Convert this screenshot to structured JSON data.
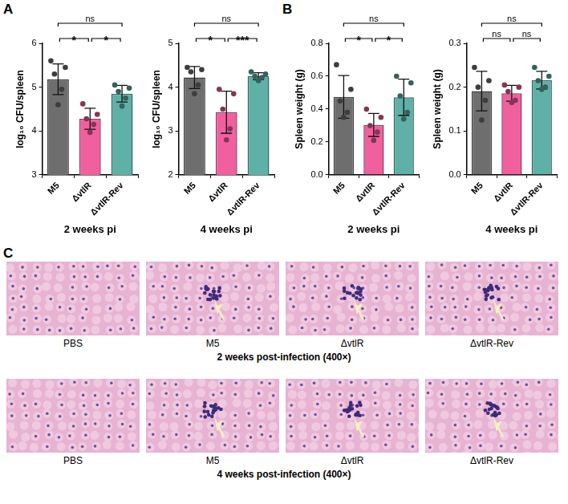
{
  "panel_letters": [
    "A",
    "B",
    "C"
  ],
  "chart_data": [
    {
      "type": "bar",
      "categories": [
        "M5",
        "ΔvtlR",
        "ΔvtlR-Rev"
      ],
      "values": [
        5.18,
        4.28,
        4.85
      ],
      "error": [
        0.35,
        0.24,
        0.19
      ],
      "points": [
        [
          5.6,
          5.45,
          5.3,
          4.95,
          4.6
        ],
        [
          4.62,
          4.38,
          4.28,
          4.15,
          3.97
        ],
        [
          5.05,
          4.98,
          4.9,
          4.75,
          4.57
        ]
      ],
      "colors": [
        "#6e6e6e",
        "#f0609e",
        "#5fb0a6"
      ],
      "x_label": "2 weeks pi",
      "y_label": "log₁₀ CFU/spleen",
      "ylim": [
        3,
        6
      ],
      "yticks": [
        3,
        4,
        5,
        6
      ],
      "comparisons": [
        {
          "pair": [
            "M5",
            "ΔvtlR"
          ],
          "label": "*"
        },
        {
          "pair": [
            "ΔvtlR",
            "ΔvtlR-Rev"
          ],
          "label": "*"
        },
        {
          "pair": [
            "M5",
            "ΔvtlR-Rev"
          ],
          "label": "ns"
        }
      ]
    },
    {
      "type": "bar",
      "categories": [
        "M5",
        "ΔvtlR",
        "ΔvtlR-Rev"
      ],
      "values": [
        4.22,
        3.43,
        4.25
      ],
      "error": [
        0.25,
        0.48,
        0.08
      ],
      "points": [
        [
          4.45,
          4.4,
          4.35,
          4.05,
          3.85
        ],
        [
          3.95,
          3.85,
          3.5,
          3.05,
          2.8
        ],
        [
          4.35,
          4.3,
          4.25,
          4.22,
          4.15
        ]
      ],
      "colors": [
        "#6e6e6e",
        "#f0609e",
        "#5fb0a6"
      ],
      "x_label": "4 weeks pi",
      "y_label": "log₁₀ CFU/spleen",
      "ylim": [
        2,
        5
      ],
      "yticks": [
        2,
        3,
        4,
        5
      ],
      "comparisons": [
        {
          "pair": [
            "M5",
            "ΔvtlR"
          ],
          "label": "*"
        },
        {
          "pair": [
            "ΔvtlR",
            "ΔvtlR-Rev"
          ],
          "label": "***"
        },
        {
          "pair": [
            "M5",
            "ΔvtlR-Rev"
          ],
          "label": "ns"
        }
      ]
    },
    {
      "type": "bar",
      "categories": [
        "M5",
        "ΔvtlR",
        "ΔvtlR-Rev"
      ],
      "values": [
        0.474,
        0.304,
        0.472
      ],
      "error": [
        0.13,
        0.07,
        0.11
      ],
      "points": [
        [
          0.67,
          0.52,
          0.45,
          0.38,
          0.35
        ],
        [
          0.4,
          0.35,
          0.3,
          0.26,
          0.21
        ],
        [
          0.6,
          0.56,
          0.48,
          0.38,
          0.34
        ]
      ],
      "colors": [
        "#6e6e6e",
        "#f0609e",
        "#5fb0a6"
      ],
      "x_label": "2 weeks pi",
      "y_label": "Spleen weight (g)",
      "ylim": [
        0,
        0.8
      ],
      "yticks": [
        {
          "value": 0,
          "label": "0.0"
        },
        0.2,
        0.4,
        0.6,
        0.8
      ],
      "comparisons": [
        {
          "pair": [
            "M5",
            "ΔvtlR"
          ],
          "label": "*"
        },
        {
          "pair": [
            "ΔvtlR",
            "ΔvtlR-Rev"
          ],
          "label": "*"
        },
        {
          "pair": [
            "M5",
            "ΔvtlR-Rev"
          ],
          "label": "ns"
        }
      ]
    },
    {
      "type": "bar",
      "categories": [
        "M5",
        "ΔvtlR",
        "ΔvtlR-Rev"
      ],
      "values": [
        0.191,
        0.186,
        0.216
      ],
      "error": [
        0.045,
        0.018,
        0.02
      ],
      "points": [
        [
          0.245,
          0.215,
          0.2,
          0.17,
          0.125
        ],
        [
          0.205,
          0.2,
          0.19,
          0.17,
          0.165
        ],
        [
          0.245,
          0.225,
          0.215,
          0.2,
          0.195
        ]
      ],
      "colors": [
        "#6e6e6e",
        "#f0609e",
        "#5fb0a6"
      ],
      "x_label": "4 weeks pi",
      "y_label": "Spleen weight (g)",
      "ylim": [
        0,
        0.3
      ],
      "yticks": [
        {
          "value": 0,
          "label": "0.0"
        },
        0.1,
        0.2,
        0.3
      ],
      "comparisons": [
        {
          "pair": [
            "M5",
            "ΔvtlR"
          ],
          "label": "ns"
        },
        {
          "pair": [
            "ΔvtlR",
            "ΔvtlR-Rev"
          ],
          "label": "ns"
        },
        {
          "pair": [
            "M5",
            "ΔvtlR-Rev"
          ],
          "label": "ns"
        }
      ]
    }
  ],
  "histology": {
    "rows": [
      {
        "caption": "2 weeks post-infection (400×)",
        "images": [
          "PBS",
          "M5",
          "ΔvtlR",
          "ΔvtlR-Rev"
        ]
      },
      {
        "caption": "4 weeks post-infection (400×)",
        "images": [
          "PBS",
          "M5",
          "ΔvtlR",
          "ΔvtlR-Rev"
        ]
      }
    ]
  }
}
